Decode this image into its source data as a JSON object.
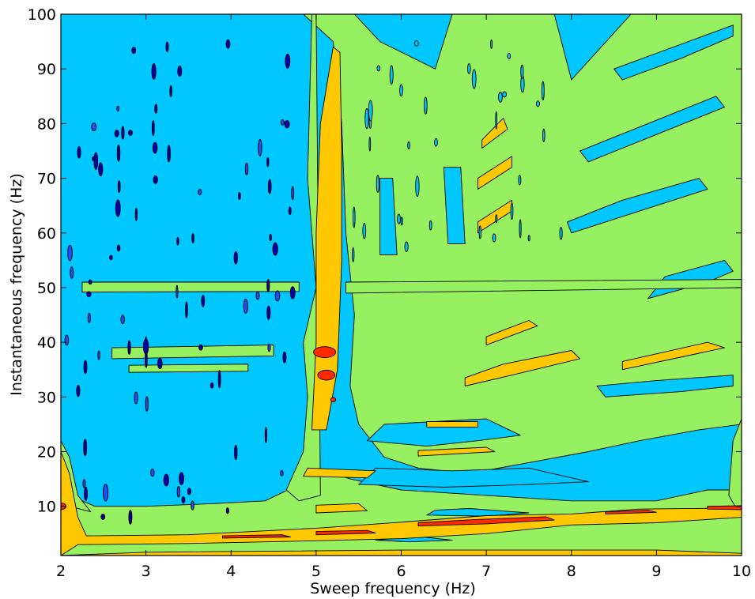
{
  "chart_data": {
    "type": "heatmap",
    "subtype": "filled-contour",
    "title": "",
    "xlabel": "Sweep frequency (Hz)",
    "ylabel": "Instantaneous frequency (Hz)",
    "xlim": [
      2,
      10
    ],
    "ylim": [
      1,
      100
    ],
    "x_ticks": [
      2,
      3,
      4,
      5,
      6,
      7,
      8,
      9,
      10
    ],
    "y_ticks": [
      10,
      20,
      30,
      40,
      50,
      60,
      70,
      80,
      90,
      100
    ],
    "grid": false,
    "legend": "none",
    "colorscale": [
      "#0000a8",
      "#1f4ff5",
      "#00c8ff",
      "#96f060",
      "#ffc800",
      "#ff2a00"
    ],
    "features": [
      {
        "name": "sweep-harmonic",
        "x": [
          5.0,
          5.3
        ],
        "y": [
          25,
          98
        ],
        "level": 4
      },
      {
        "name": "hot-spot",
        "x": 5.1,
        "y": 38,
        "level": 5
      },
      {
        "name": "hot-spot",
        "x": 5.15,
        "y": 34,
        "level": 5
      },
      {
        "name": "low-frequency-band",
        "x": [
          2,
          10
        ],
        "y": [
          3,
          8
        ],
        "level": 4
      },
      {
        "name": "hot-band",
        "x": [
          6.2,
          8.0
        ],
        "y": 7,
        "level": 5
      },
      {
        "name": "mains-line",
        "x": [
          2.2,
          4.8
        ],
        "y": 50,
        "level": 3
      },
      {
        "name": "diagonal-harmonic",
        "x": [
          7.0,
          7.5
        ],
        "y": [
          40,
          92
        ],
        "level": 4
      }
    ]
  }
}
